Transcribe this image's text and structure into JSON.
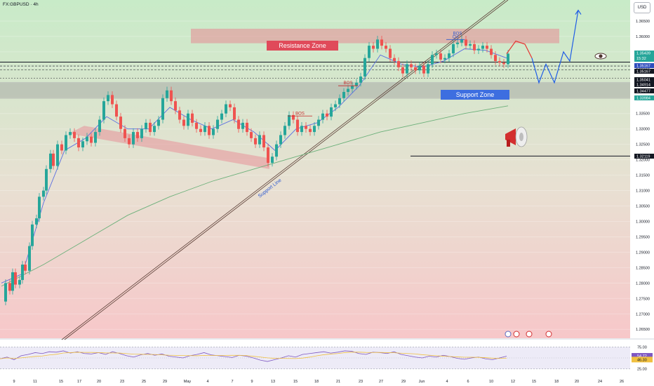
{
  "header": {
    "symbol": "FX:GBPUSD · 4h",
    "currency": "USD"
  },
  "colors": {
    "bullish": "#26a69a",
    "bearish": "#ef5350",
    "resistance_zone": "#e88a94",
    "support_zone": "#9e9e9e",
    "projection_red": "#e53935",
    "projection_blue": "#1e5ce6",
    "ma_fast": "#5b6ee1",
    "ma_slow": "#6cb07a",
    "rsi_line": "#7e57c2",
    "rsi_ma": "#f0c040"
  },
  "annotations": {
    "resistance_zone": "Resistance Zone",
    "support_zone": "Support Zone",
    "support_line": "Support Line",
    "bos": "BOS",
    "choch": "CH"
  },
  "icons": [
    "eye-icon",
    "megaphone-icon",
    "event-icon",
    "flag-icon"
  ],
  "chart_data": {
    "type": "candlestick",
    "symbol": "GBPUSD",
    "timeframe": "4h",
    "ylim": [
      1.263,
      1.37
    ],
    "y_ticks": [
      "1.36500",
      "1.36000",
      "1.35500",
      "1.35000",
      "1.34500",
      "1.34000",
      "1.33500",
      "1.33000",
      "1.32500",
      "1.32000",
      "1.31500",
      "1.31000",
      "1.30500",
      "1.30000",
      "1.29500",
      "1.29000",
      "1.28500",
      "1.28000",
      "1.27500",
      "1.27000",
      "1.26500"
    ],
    "x_labels": [
      "9",
      "11",
      "15",
      "17",
      "20",
      "23",
      "25",
      "29",
      "May",
      "4",
      "7",
      "9",
      "13",
      "15",
      "18",
      "21",
      "23",
      "27",
      "29",
      "Jun",
      "4",
      "6",
      "10",
      "12",
      "15",
      "18",
      "20",
      "24",
      "26"
    ],
    "price_tags": [
      {
        "value": "1.35439",
        "sub": "15:32",
        "color": "#26a69a"
      },
      {
        "value": "1.35167",
        "color": "#2f4dbd"
      },
      {
        "value": "1.35167",
        "color": "#131722"
      },
      {
        "value": "1.35041",
        "color": "#131722"
      },
      {
        "value": "1.34914",
        "color": "#131722"
      },
      {
        "value": "1.34477",
        "color": "#131722"
      },
      {
        "value": "1.33984",
        "color": "#26a69a"
      },
      {
        "value": "1.32119",
        "color": "#131722"
      }
    ],
    "close_path": [
      [
        0,
        1.274
      ],
      [
        6,
        1.28
      ],
      [
        12,
        1.2775
      ],
      [
        16,
        1.2835
      ],
      [
        20,
        1.2795
      ],
      [
        26,
        1.281
      ],
      [
        30,
        1.286
      ],
      [
        34,
        1.284
      ],
      [
        40,
        1.292
      ],
      [
        44,
        1.299
      ],
      [
        50,
        1.301
      ],
      [
        54,
        1.308
      ],
      [
        60,
        1.31
      ],
      [
        64,
        1.317
      ],
      [
        70,
        1.322
      ],
      [
        74,
        1.318
      ],
      [
        80,
        1.325
      ],
      [
        86,
        1.323
      ],
      [
        92,
        1.328
      ],
      [
        98,
        1.329
      ],
      [
        104,
        1.327
      ],
      [
        110,
        1.324
      ],
      [
        116,
        1.326
      ],
      [
        122,
        1.3275
      ],
      [
        128,
        1.3255
      ],
      [
        134,
        1.329
      ],
      [
        140,
        1.333
      ],
      [
        146,
        1.339
      ],
      [
        152,
        1.341
      ],
      [
        158,
        1.338
      ],
      [
        164,
        1.334
      ],
      [
        170,
        1.33
      ],
      [
        176,
        1.327
      ],
      [
        182,
        1.325
      ],
      [
        188,
        1.329
      ],
      [
        194,
        1.327
      ],
      [
        200,
        1.33
      ],
      [
        206,
        1.332
      ],
      [
        212,
        1.329
      ],
      [
        218,
        1.331
      ],
      [
        224,
        1.333
      ],
      [
        230,
        1.34
      ],
      [
        236,
        1.3425
      ],
      [
        242,
        1.339
      ],
      [
        248,
        1.336
      ],
      [
        254,
        1.333
      ],
      [
        260,
        1.331
      ],
      [
        266,
        1.335
      ],
      [
        272,
        1.332
      ],
      [
        278,
        1.33
      ],
      [
        284,
        1.329
      ],
      [
        290,
        1.331
      ],
      [
        296,
        1.328
      ],
      [
        302,
        1.33
      ],
      [
        308,
        1.333
      ],
      [
        314,
        1.335
      ],
      [
        320,
        1.338
      ],
      [
        326,
        1.337
      ],
      [
        332,
        1.333
      ],
      [
        338,
        1.33
      ],
      [
        344,
        1.332
      ],
      [
        350,
        1.329
      ],
      [
        356,
        1.327
      ],
      [
        362,
        1.325
      ],
      [
        368,
        1.328
      ],
      [
        374,
        1.324
      ],
      [
        380,
        1.319
      ],
      [
        386,
        1.321
      ],
      [
        392,
        1.325
      ],
      [
        398,
        1.328
      ],
      [
        404,
        1.331
      ],
      [
        410,
        1.3345
      ],
      [
        416,
        1.333
      ],
      [
        422,
        1.329
      ],
      [
        428,
        1.331
      ],
      [
        434,
        1.33
      ],
      [
        440,
        1.329
      ],
      [
        446,
        1.331
      ],
      [
        452,
        1.333
      ],
      [
        458,
        1.335
      ],
      [
        464,
        1.334
      ],
      [
        470,
        1.337
      ],
      [
        476,
        1.338
      ],
      [
        482,
        1.34
      ],
      [
        488,
        1.342
      ],
      [
        494,
        1.343
      ],
      [
        500,
        1.344
      ],
      [
        506,
        1.345
      ],
      [
        512,
        1.347
      ],
      [
        518,
        1.353
      ],
      [
        524,
        1.357
      ],
      [
        530,
        1.356
      ],
      [
        536,
        1.359
      ],
      [
        542,
        1.357
      ],
      [
        548,
        1.356
      ],
      [
        554,
        1.353
      ],
      [
        560,
        1.352
      ],
      [
        566,
        1.35
      ],
      [
        572,
        1.348
      ],
      [
        578,
        1.351
      ],
      [
        584,
        1.35
      ],
      [
        590,
        1.349
      ],
      [
        596,
        1.3505
      ],
      [
        602,
        1.348
      ],
      [
        608,
        1.351
      ],
      [
        614,
        1.354
      ],
      [
        620,
        1.3545
      ],
      [
        626,
        1.3525
      ],
      [
        632,
        1.353
      ],
      [
        638,
        1.3545
      ],
      [
        644,
        1.3575
      ],
      [
        650,
        1.358
      ],
      [
        656,
        1.359
      ],
      [
        662,
        1.357
      ],
      [
        668,
        1.3575
      ],
      [
        674,
        1.3555
      ],
      [
        680,
        1.356
      ],
      [
        686,
        1.357
      ],
      [
        692,
        1.356
      ],
      [
        698,
        1.354
      ],
      [
        704,
        1.352
      ],
      [
        710,
        1.3515
      ],
      [
        716,
        1.351
      ],
      [
        722,
        1.3544
      ]
    ],
    "moving_averages": [
      {
        "name": "fast",
        "points": [
          [
            0,
            1.28
          ],
          [
            30,
            1.283
          ],
          [
            60,
            1.306
          ],
          [
            90,
            1.323
          ],
          [
            120,
            1.327
          ],
          [
            150,
            1.334
          ],
          [
            180,
            1.33
          ],
          [
            210,
            1.33
          ],
          [
            240,
            1.337
          ],
          [
            270,
            1.333
          ],
          [
            300,
            1.33
          ],
          [
            330,
            1.333
          ],
          [
            360,
            1.329
          ],
          [
            390,
            1.323
          ],
          [
            420,
            1.33
          ],
          [
            450,
            1.332
          ],
          [
            480,
            1.337
          ],
          [
            510,
            1.344
          ],
          [
            540,
            1.354
          ],
          [
            570,
            1.351
          ],
          [
            600,
            1.35
          ],
          [
            630,
            1.352
          ],
          [
            660,
            1.356
          ],
          [
            690,
            1.3555
          ],
          [
            720,
            1.353
          ]
        ]
      },
      {
        "name": "slow",
        "points": [
          [
            0,
            1.279
          ],
          [
            60,
            1.286
          ],
          [
            120,
            1.294
          ],
          [
            180,
            1.302
          ],
          [
            240,
            1.308
          ],
          [
            300,
            1.313
          ],
          [
            360,
            1.317
          ],
          [
            420,
            1.321
          ],
          [
            480,
            1.325
          ],
          [
            540,
            1.329
          ],
          [
            600,
            1.332
          ],
          [
            660,
            1.335
          ],
          [
            722,
            1.3375
          ]
        ]
      }
    ],
    "zones": [
      {
        "name": "Resistance Zone",
        "from": 1.3578,
        "to": 1.3625
      },
      {
        "name": "Support Zone",
        "from": 1.3398,
        "to": 1.3452
      }
    ],
    "levels": [
      1.35167,
      1.35041,
      1.34914,
      1.32119
    ],
    "projection_red": [
      [
        722,
        1.3544
      ],
      [
        735,
        1.3585
      ],
      [
        748,
        1.3575
      ],
      [
        758,
        1.353
      ]
    ],
    "projection_blue": [
      [
        758,
        1.353
      ],
      [
        768,
        1.345
      ],
      [
        778,
        1.351
      ],
      [
        790,
        1.345
      ],
      [
        803,
        1.355
      ],
      [
        812,
        1.352
      ],
      [
        824,
        1.3685
      ]
    ],
    "rsi": {
      "ylim": [
        15,
        85
      ],
      "levels": [
        "75.00",
        "25.00"
      ],
      "current": "54.72",
      "signal": "46.30",
      "values": [
        48,
        52,
        46,
        55,
        58,
        62,
        60,
        64,
        63,
        66,
        61,
        64,
        60,
        59,
        62,
        58,
        64,
        60,
        55,
        52,
        57,
        60,
        56,
        59,
        54,
        52,
        50,
        55,
        58,
        62,
        57,
        55,
        53,
        51,
        56,
        54,
        50,
        45,
        42,
        46,
        50,
        55,
        52,
        58,
        60,
        62,
        64,
        61,
        63,
        66,
        65,
        60,
        58,
        63,
        62,
        60,
        64,
        58,
        55,
        52,
        50,
        54,
        52,
        56,
        53,
        49,
        47,
        50,
        52,
        48,
        46,
        50,
        54
      ]
    }
  }
}
